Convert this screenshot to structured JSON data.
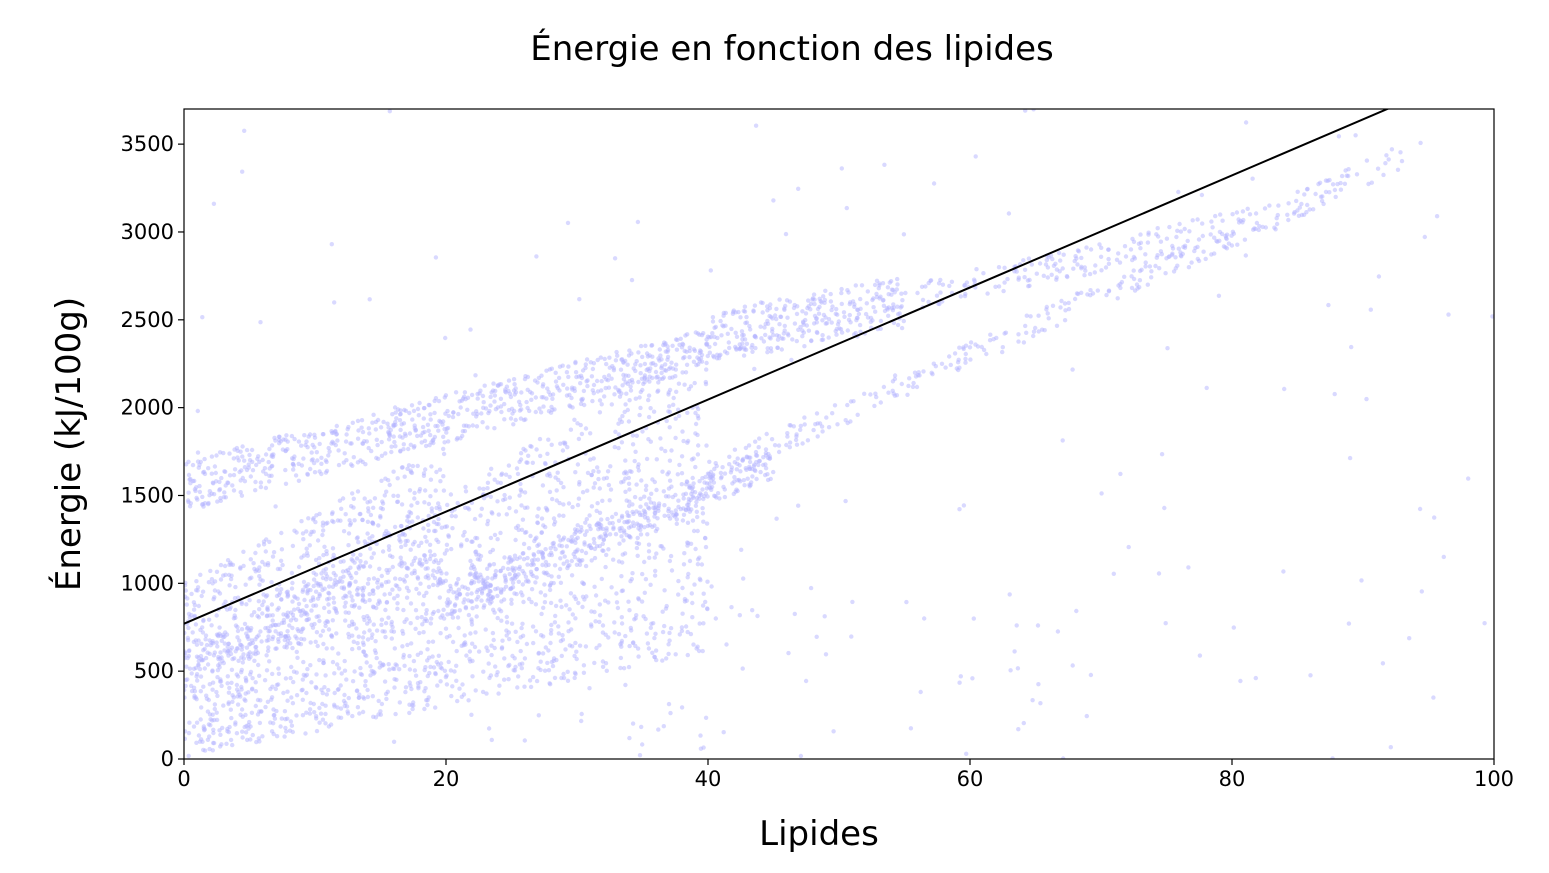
{
  "chart_data": {
    "type": "scatter",
    "title": "Énergie en fonction des lipides",
    "xlabel": "Lipides",
    "ylabel": "Énergie (kJ/100g)",
    "xlim": [
      0,
      100
    ],
    "ylim": [
      0,
      3700
    ],
    "x_ticks": [
      0,
      20,
      40,
      60,
      80,
      100
    ],
    "y_ticks": [
      0,
      500,
      1000,
      1500,
      2000,
      2500,
      3000,
      3500
    ],
    "grid": false,
    "legend": "none",
    "point_color": "#b3b3ff",
    "point_opacity": 0.5,
    "line_color": "#000000",
    "regression_line": {
      "intercept": 770,
      "slope": 31.9,
      "x_range": [
        0,
        92.2
      ]
    },
    "series": [
      {
        "structures": [
          {
            "kind": "band",
            "x_range": [
              0,
              40
            ],
            "y_start": [
              0,
              600
            ],
            "y_end": [
              600,
              2400
            ],
            "count": 1700
          },
          {
            "kind": "band",
            "x_range": [
              0,
              40
            ],
            "y_start": [
              1400,
              1700
            ],
            "y_end": [
              2200,
              2450
            ],
            "count": 700
          },
          {
            "kind": "band",
            "x_range": [
              0,
              20
            ],
            "y_start": [
              500,
              1000
            ],
            "y_end": [
              1000,
              1800
            ],
            "count": 500
          },
          {
            "kind": "band",
            "x_range": [
              40,
              55
            ],
            "y_start": [
              2250,
              2550
            ],
            "y_end": [
              2450,
              2750
            ],
            "count": 300
          },
          {
            "kind": "band",
            "x_range": [
              40,
              93
            ],
            "y_start": [
              1550,
              1700
            ],
            "y_end": [
              3350,
              3500
            ],
            "count": 300
          },
          {
            "kind": "band",
            "x_range": [
              55,
              82
            ],
            "y_start": [
              2550,
              2700
            ],
            "y_end": [
              2950,
              3150
            ],
            "count": 180
          },
          {
            "kind": "band",
            "x_range": [
              20,
              45
            ],
            "y_start": [
              800,
              1000
            ],
            "y_end": [
              1600,
              1800
            ],
            "count": 400
          },
          {
            "kind": "band",
            "x_range": [
              15,
              70
            ],
            "y_start": [
              0,
              800
            ],
            "y_end": [
              0,
              1000
            ],
            "count": 60
          },
          {
            "kind": "scatter",
            "x_range": [
              0,
              100
            ],
            "y_range": [
              0,
              3700
            ],
            "count": 150
          }
        ]
      }
    ]
  }
}
